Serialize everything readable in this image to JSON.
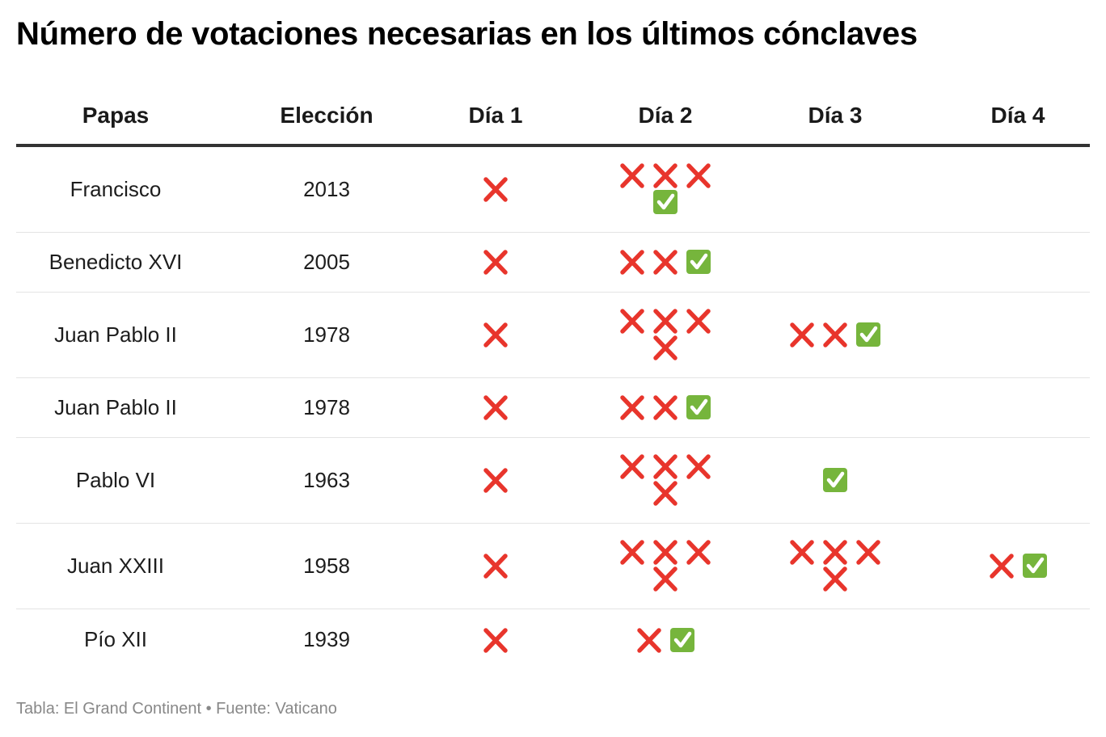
{
  "title": "Número de votaciones necesarias en los últimos cónclaves",
  "icons": {
    "❌": "cross-mark-icon",
    "✅": "check-mark-icon"
  },
  "colors": {
    "cross": "#e8352c",
    "check": "#76b53c"
  },
  "chart_data": {
    "type": "table",
    "columns": [
      "Papas",
      "Elección",
      "Día 1",
      "Día 2",
      "Día 3",
      "Día 4"
    ],
    "rows": [
      [
        "Francisco",
        "2013",
        "❌",
        "❌❌❌✅",
        "",
        ""
      ],
      [
        "Benedicto XVI",
        "2005",
        "❌",
        "❌❌✅",
        "",
        ""
      ],
      [
        "Juan Pablo II",
        "1978",
        "❌",
        "❌❌❌❌",
        "❌❌✅",
        ""
      ],
      [
        "Juan Pablo II",
        "1978",
        "❌",
        "❌❌✅",
        "",
        ""
      ],
      [
        "Pablo VI",
        "1963",
        "❌",
        "❌❌❌❌",
        "✅",
        ""
      ],
      [
        "Juan XXIII",
        "1958",
        "❌",
        "❌❌❌❌",
        "❌❌❌❌",
        "❌✅"
      ],
      [
        "Pío XII",
        "1939",
        "❌",
        "❌✅",
        "",
        ""
      ]
    ]
  },
  "footer": "Tabla: El Grand Continent • Fuente: Vaticano"
}
